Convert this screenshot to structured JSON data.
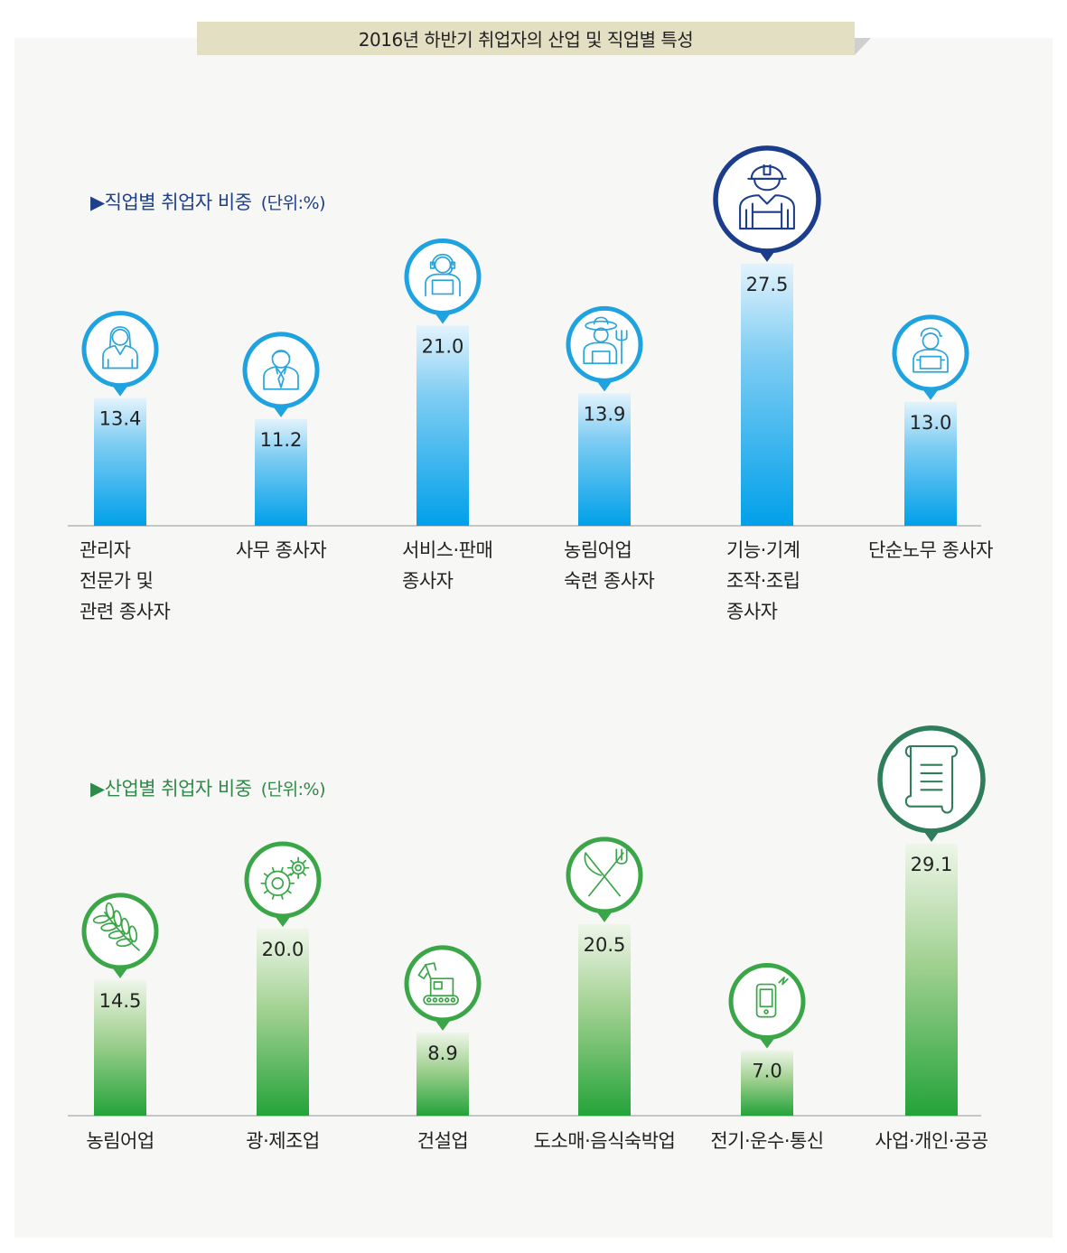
{
  "page_title": "2016년 하반기 취업자의 산업 및 직업별 특성",
  "colors": {
    "occupation_bar_top": "#e3f3fc",
    "occupation_bar_bottom": "#00a0e9",
    "occupation_highlight": "#1c3d8c",
    "industry_bar_top": "#eef6e9",
    "industry_bar_bottom": "#24a33a",
    "industry_highlight": "#2e7d5b",
    "banner": "#e3dfc3"
  },
  "chart_data": [
    {
      "type": "bar",
      "title": "직업별 취업자 비중",
      "unit": "(단위:%)",
      "categories": [
        "관리자\n전문가 및\n관련 종사자",
        "사무 종사자",
        "서비스·판매\n종사자",
        "농림어업\n숙련 종사자",
        "기능·기계\n조작·조립\n종사자",
        "단순노무 종사자"
      ],
      "values": [
        13.4,
        11.2,
        21.0,
        13.9,
        27.5,
        13.0
      ],
      "value_labels": [
        "13.4",
        "11.2",
        "21.0",
        "13.9",
        "27.5",
        "13.0"
      ],
      "icons": [
        "manager-woman-icon",
        "office-worker-icon",
        "service-headset-icon",
        "farmer-icon",
        "worker-helmet-icon",
        "laborer-icon"
      ],
      "highlight_index": 4
    },
    {
      "type": "bar",
      "title": "산업별 취업자 비중",
      "unit": "(단위:%)",
      "categories": [
        "농림어업",
        "광·제조업",
        "건설업",
        "도소매·음식숙박업",
        "전기·운수·통신",
        "사업·개인·공공"
      ],
      "values": [
        14.5,
        20.0,
        8.9,
        20.5,
        7.0,
        29.1
      ],
      "value_labels": [
        "14.5",
        "20.0",
        "8.9",
        "20.5",
        "7.0",
        "29.1"
      ],
      "icons": [
        "wheat-icon",
        "gears-icon",
        "excavator-icon",
        "fork-knife-icon",
        "phone-icon",
        "scroll-document-icon"
      ],
      "highlight_index": 5
    }
  ]
}
